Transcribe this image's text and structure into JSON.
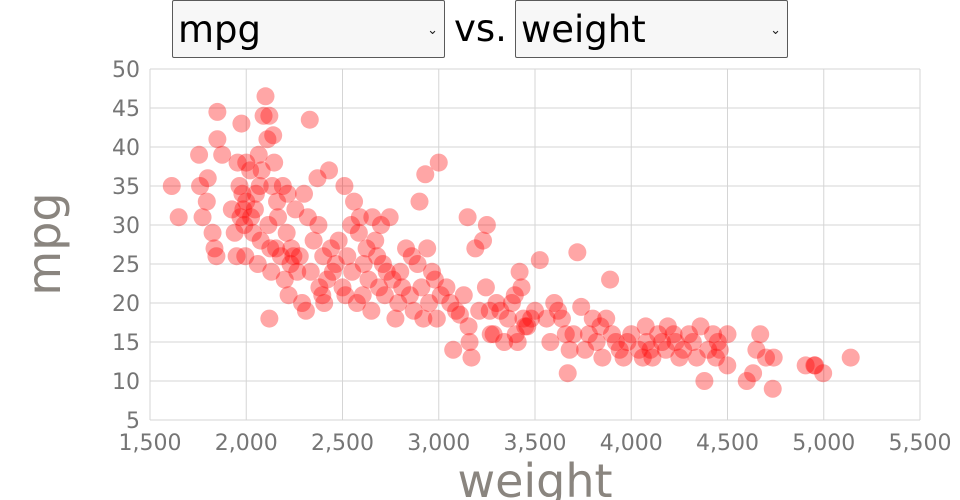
{
  "controls": {
    "y_select": {
      "value": "mpg",
      "icon": "chevron-down-icon"
    },
    "separator": "vs.",
    "x_select": {
      "value": "weight",
      "icon": "chevron-down-icon"
    }
  },
  "colors": {
    "point": "#ff0000",
    "grid": "#d5d5d5",
    "tick_text": "#757575",
    "axis_title": "#8a857f"
  },
  "chart_data": {
    "type": "scatter",
    "xlabel": "weight",
    "ylabel": "mpg",
    "xlim": [
      1500,
      5500
    ],
    "ylim": [
      5,
      50
    ],
    "x_ticks": [
      1500,
      2000,
      2500,
      3000,
      3500,
      4000,
      4500,
      5000,
      5500
    ],
    "x_tick_labels": [
      "1,500",
      "2,000",
      "2,500",
      "3,000",
      "3,500",
      "4,000",
      "4,500",
      "5,000",
      "5,500"
    ],
    "y_ticks": [
      5,
      10,
      15,
      20,
      25,
      30,
      35,
      40,
      45,
      50
    ],
    "y_tick_labels": [
      "5",
      "10",
      "15",
      "20",
      "25",
      "30",
      "35",
      "40",
      "45",
      "50"
    ],
    "grid": true,
    "point_opacity": 0.35,
    "points": [
      [
        1613,
        35
      ],
      [
        1649,
        31
      ],
      [
        1755,
        39
      ],
      [
        1760,
        35
      ],
      [
        1773,
        31
      ],
      [
        1795,
        33
      ],
      [
        1800,
        36
      ],
      [
        1825,
        29
      ],
      [
        1835,
        27
      ],
      [
        1845,
        26
      ],
      [
        1850,
        44.5
      ],
      [
        1850,
        41
      ],
      [
        1875,
        39
      ],
      [
        1925,
        32
      ],
      [
        1940,
        29
      ],
      [
        1950,
        26
      ],
      [
        1955,
        38
      ],
      [
        1965,
        35
      ],
      [
        1970,
        31
      ],
      [
        1975,
        43
      ],
      [
        1980,
        34
      ],
      [
        1985,
        32
      ],
      [
        1990,
        30
      ],
      [
        1995,
        26
      ],
      [
        2000,
        38
      ],
      [
        2000,
        33
      ],
      [
        2020,
        37
      ],
      [
        2025,
        31
      ],
      [
        2035,
        29
      ],
      [
        2045,
        32
      ],
      [
        2050,
        34
      ],
      [
        2060,
        25
      ],
      [
        2065,
        39
      ],
      [
        2070,
        35
      ],
      [
        2075,
        28
      ],
      [
        2080,
        37
      ],
      [
        2090,
        44
      ],
      [
        2100,
        46.5
      ],
      [
        2110,
        41
      ],
      [
        2115,
        30
      ],
      [
        2120,
        44
      ],
      [
        2120,
        18
      ],
      [
        2125,
        27
      ],
      [
        2130,
        24
      ],
      [
        2135,
        35
      ],
      [
        2140,
        41.5
      ],
      [
        2145,
        38
      ],
      [
        2155,
        27
      ],
      [
        2160,
        33
      ],
      [
        2165,
        31
      ],
      [
        2180,
        26
      ],
      [
        2190,
        35
      ],
      [
        2200,
        23
      ],
      [
        2210,
        29
      ],
      [
        2215,
        34
      ],
      [
        2220,
        21
      ],
      [
        2230,
        25
      ],
      [
        2234,
        27
      ],
      [
        2245,
        26
      ],
      [
        2255,
        32
      ],
      [
        2265,
        24
      ],
      [
        2278,
        26
      ],
      [
        2290,
        20
      ],
      [
        2300,
        34
      ],
      [
        2310,
        19
      ],
      [
        2320,
        31
      ],
      [
        2330,
        43.5
      ],
      [
        2335,
        24
      ],
      [
        2350,
        28
      ],
      [
        2370,
        36
      ],
      [
        2375,
        30
      ],
      [
        2380,
        22
      ],
      [
        2395,
        21
      ],
      [
        2400,
        26
      ],
      [
        2405,
        20
      ],
      [
        2420,
        23
      ],
      [
        2430,
        37
      ],
      [
        2440,
        27
      ],
      [
        2450,
        24
      ],
      [
        2465,
        25
      ],
      [
        2480,
        28
      ],
      [
        2500,
        22
      ],
      [
        2510,
        35
      ],
      [
        2515,
        21
      ],
      [
        2525,
        26
      ],
      [
        2545,
        30
      ],
      [
        2550,
        24
      ],
      [
        2560,
        33
      ],
      [
        2575,
        20
      ],
      [
        2585,
        29
      ],
      [
        2590,
        31
      ],
      [
        2605,
        21
      ],
      [
        2610,
        25
      ],
      [
        2625,
        27
      ],
      [
        2635,
        23
      ],
      [
        2650,
        19
      ],
      [
        2655,
        31
      ],
      [
        2670,
        28
      ],
      [
        2680,
        26
      ],
      [
        2690,
        22
      ],
      [
        2700,
        30
      ],
      [
        2710,
        25
      ],
      [
        2720,
        21
      ],
      [
        2730,
        24
      ],
      [
        2745,
        31
      ],
      [
        2760,
        23
      ],
      [
        2775,
        18
      ],
      [
        2790,
        20
      ],
      [
        2800,
        24
      ],
      [
        2810,
        22
      ],
      [
        2830,
        27
      ],
      [
        2850,
        21
      ],
      [
        2860,
        26
      ],
      [
        2870,
        19
      ],
      [
        2890,
        25
      ],
      [
        2900,
        33
      ],
      [
        2910,
        22
      ],
      [
        2920,
        18
      ],
      [
        2930,
        36.5
      ],
      [
        2940,
        27
      ],
      [
        2950,
        20
      ],
      [
        2965,
        24
      ],
      [
        2980,
        23
      ],
      [
        2990,
        18
      ],
      [
        3000,
        38
      ],
      [
        3010,
        21
      ],
      [
        3040,
        22
      ],
      [
        3060,
        20
      ],
      [
        3075,
        14
      ],
      [
        3090,
        19
      ],
      [
        3110,
        18.5
      ],
      [
        3130,
        21
      ],
      [
        3150,
        31
      ],
      [
        3155,
        17
      ],
      [
        3160,
        15
      ],
      [
        3170,
        13
      ],
      [
        3190,
        27
      ],
      [
        3210,
        19
      ],
      [
        3230,
        28
      ],
      [
        3245,
        22
      ],
      [
        3250,
        30
      ],
      [
        3265,
        19
      ],
      [
        3270,
        16
      ],
      [
        3285,
        16
      ],
      [
        3300,
        20
      ],
      [
        3320,
        19
      ],
      [
        3340,
        15
      ],
      [
        3360,
        18
      ],
      [
        3380,
        20
      ],
      [
        3395,
        21
      ],
      [
        3400,
        16
      ],
      [
        3410,
        15
      ],
      [
        3420,
        24
      ],
      [
        3430,
        22
      ],
      [
        3440,
        18
      ],
      [
        3449,
        17
      ],
      [
        3460,
        17
      ],
      [
        3480,
        18
      ],
      [
        3500,
        19
      ],
      [
        3525,
        25.5
      ],
      [
        3560,
        18
      ],
      [
        3580,
        15
      ],
      [
        3600,
        20
      ],
      [
        3620,
        19
      ],
      [
        3640,
        18
      ],
      [
        3660,
        16
      ],
      [
        3670,
        11
      ],
      [
        3680,
        14
      ],
      [
        3700,
        16
      ],
      [
        3720,
        26.5
      ],
      [
        3740,
        19.5
      ],
      [
        3760,
        14
      ],
      [
        3780,
        16
      ],
      [
        3800,
        18
      ],
      [
        3820,
        15
      ],
      [
        3840,
        17
      ],
      [
        3850,
        13
      ],
      [
        3870,
        18
      ],
      [
        3890,
        23
      ],
      [
        3900,
        16
      ],
      [
        3920,
        15
      ],
      [
        3940,
        14
      ],
      [
        3960,
        13
      ],
      [
        3980,
        15
      ],
      [
        4000,
        16
      ],
      [
        4040,
        14
      ],
      [
        4060,
        13
      ],
      [
        4075,
        17
      ],
      [
        4080,
        15
      ],
      [
        4100,
        14
      ],
      [
        4110,
        13
      ],
      [
        4140,
        16
      ],
      [
        4160,
        15
      ],
      [
        4180,
        14
      ],
      [
        4190,
        17
      ],
      [
        4220,
        16
      ],
      [
        4230,
        15
      ],
      [
        4250,
        13
      ],
      [
        4270,
        14
      ],
      [
        4300,
        16
      ],
      [
        4320,
        15
      ],
      [
        4340,
        13
      ],
      [
        4360,
        17
      ],
      [
        4380,
        10
      ],
      [
        4400,
        14
      ],
      [
        4425,
        16
      ],
      [
        4440,
        13
      ],
      [
        4450,
        15
      ],
      [
        4460,
        14
      ],
      [
        4499,
        12
      ],
      [
        4500,
        16
      ],
      [
        4600,
        10
      ],
      [
        4633,
        11
      ],
      [
        4650,
        14
      ],
      [
        4670,
        16
      ],
      [
        4700,
        13
      ],
      [
        4735,
        9
      ],
      [
        4740,
        13
      ],
      [
        4906,
        12
      ],
      [
        4951,
        12
      ],
      [
        4955,
        12
      ],
      [
        4997,
        11
      ],
      [
        5140,
        13
      ]
    ]
  }
}
